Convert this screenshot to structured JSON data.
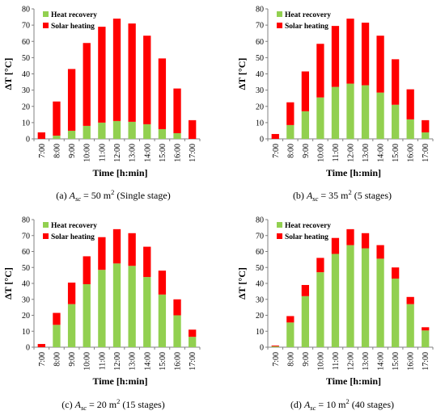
{
  "colors": {
    "heat_recovery": "#92d050",
    "solar_heating": "#ff0000"
  },
  "chart_data": [
    {
      "type": "bar",
      "stacked": true,
      "categories": [
        "7:00",
        "8:00",
        "9:00",
        "10:00",
        "11:00",
        "12:00",
        "13:00",
        "14:00",
        "15:00",
        "16:00",
        "17:00"
      ],
      "series": [
        {
          "name": "Heat recovery",
          "values": [
            0,
            2,
            5,
            8,
            10,
            11,
            10.5,
            9,
            6,
            3.5,
            0
          ]
        },
        {
          "name": "Solar heating",
          "values": [
            4,
            21,
            38,
            51,
            59,
            63,
            60.5,
            54.5,
            43.5,
            27.5,
            11.5
          ]
        }
      ],
      "xlabel": "Time [h:min]",
      "ylabel": "ΔT [°C]",
      "ylim": [
        0,
        80
      ],
      "yticks": [
        0,
        10,
        20,
        30,
        40,
        50,
        60,
        70,
        80
      ],
      "legend": "top-left",
      "caption": {
        "label": "(a)",
        "symbol": "A",
        "sub": "sc",
        "eq": " = 50 m",
        "sup": "2",
        "note": "(Single stage)"
      }
    },
    {
      "type": "bar",
      "stacked": true,
      "categories": [
        "7:00",
        "8:00",
        "9:00",
        "10:00",
        "11:00",
        "12:00",
        "13:00",
        "14:00",
        "15:00",
        "16:00",
        "17:00"
      ],
      "series": [
        {
          "name": "Heat recovery",
          "values": [
            0,
            8.5,
            17,
            25.5,
            32,
            34,
            33,
            28.5,
            21,
            12,
            4
          ]
        },
        {
          "name": "Solar heating",
          "values": [
            3,
            14,
            24.5,
            33,
            37.5,
            40,
            38.5,
            35,
            28,
            18.5,
            7.5
          ]
        }
      ],
      "xlabel": "Time [h:min]",
      "ylabel": "ΔT [°C]",
      "ylim": [
        0,
        80
      ],
      "yticks": [
        0,
        10,
        20,
        30,
        40,
        50,
        60,
        70,
        80
      ],
      "legend": "top-left",
      "caption": {
        "label": "(b)",
        "symbol": "A",
        "sub": "sc",
        "eq": " = 35 m",
        "sup": "2",
        "note": "(5 stages)"
      }
    },
    {
      "type": "bar",
      "stacked": true,
      "categories": [
        "7:00",
        "8:00",
        "9:00",
        "10:00",
        "11:00",
        "12:00",
        "13:00",
        "14:00",
        "15:00",
        "16:00",
        "17:00"
      ],
      "series": [
        {
          "name": "Heat recovery",
          "values": [
            0,
            14,
            27,
            39.5,
            48.5,
            52.5,
            51,
            44,
            33,
            20,
            6.5
          ]
        },
        {
          "name": "Solar heating",
          "values": [
            2,
            7.5,
            13.5,
            17.5,
            20.5,
            21.5,
            20.5,
            19,
            15,
            10,
            4.5
          ]
        }
      ],
      "xlabel": "Time [h:min]",
      "ylabel": "ΔT [°C]",
      "ylim": [
        0,
        80
      ],
      "yticks": [
        0,
        10,
        20,
        30,
        40,
        50,
        60,
        70,
        80
      ],
      "legend": "top-left",
      "caption": {
        "label": "(c)",
        "symbol": "A",
        "sub": "sc",
        "eq": " = 20 m",
        "sup": "2",
        "note": "(15 stages)"
      }
    },
    {
      "type": "bar",
      "stacked": true,
      "categories": [
        "7:00",
        "8:00",
        "9:00",
        "10:00",
        "11:00",
        "12:00",
        "13:00",
        "14:00",
        "15:00",
        "16:00",
        "17:00"
      ],
      "series": [
        {
          "name": "Heat recovery",
          "values": [
            0.5,
            15.5,
            32,
            47,
            58.5,
            64,
            62,
            55.5,
            43,
            27,
            10.5
          ]
        },
        {
          "name": "Solar heating",
          "values": [
            0.5,
            4,
            7,
            9,
            10,
            10,
            9.5,
            8.5,
            7,
            4.5,
            2
          ]
        }
      ],
      "xlabel": "Time [h:min]",
      "ylabel": "ΔT [°C]",
      "ylim": [
        0,
        80
      ],
      "yticks": [
        0,
        10,
        20,
        30,
        40,
        50,
        60,
        70,
        80
      ],
      "legend": "top-left",
      "caption": {
        "label": "(d)",
        "symbol": "A",
        "sub": "sc",
        "eq": " = 10 m",
        "sup": "2",
        "note": "(40 stages)"
      }
    }
  ]
}
